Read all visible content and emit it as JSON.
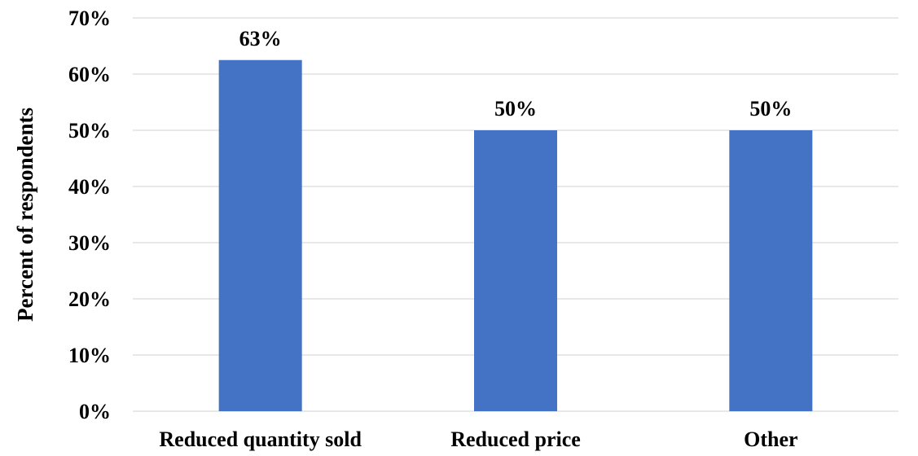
{
  "chart_data": {
    "type": "bar",
    "categories": [
      "Reduced quantity sold",
      "Reduced price",
      "Other"
    ],
    "values": [
      62.5,
      50,
      50
    ],
    "data_labels": [
      "63%",
      "50%",
      "50%"
    ],
    "title": "",
    "xlabel": "",
    "ylabel": "Percent of respondents",
    "ylim": [
      0,
      70
    ],
    "y_ticks": [
      0,
      10,
      20,
      30,
      40,
      50,
      60,
      70
    ],
    "y_tick_labels": [
      "0%",
      "10%",
      "20%",
      "30%",
      "40%",
      "50%",
      "60%",
      "70%"
    ],
    "grid": true,
    "legend": "none",
    "bar_color": "#4472c4"
  }
}
